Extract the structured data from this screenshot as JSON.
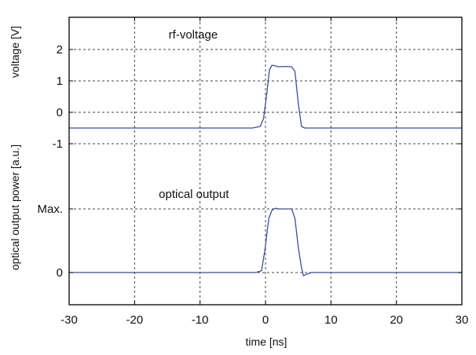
{
  "chart_data": {
    "type": "line",
    "xlabel": "time [ns]",
    "x_ticks": [
      -30,
      -20,
      -10,
      0,
      10,
      20,
      30
    ],
    "xlim": [
      -30,
      30
    ],
    "grid": true,
    "line_color": "#3a4f9c",
    "panels": [
      {
        "ylabel": "voltage [V]",
        "y_ticks": [
          {
            "value": 2,
            "label": "2"
          },
          {
            "value": 1,
            "label": "1"
          },
          {
            "value": 0,
            "label": "0"
          },
          {
            "value": -1,
            "label": "-1"
          }
        ],
        "annotation": {
          "text": "rf-voltage",
          "x": -14.8,
          "y": 2.35
        },
        "series": [
          {
            "x": [
              -30,
              -20,
              -10,
              -2,
              -0.8,
              -0.3,
              0.2,
              0.6,
              1.0,
              2.0,
              3.0,
              4.0,
              4.5,
              5.0,
              5.5,
              6.0,
              10,
              20,
              30
            ],
            "y": [
              -0.5,
              -0.5,
              -0.5,
              -0.5,
              -0.45,
              -0.2,
              0.6,
              1.35,
              1.5,
              1.45,
              1.46,
              1.45,
              1.3,
              0.3,
              -0.45,
              -0.5,
              -0.5,
              -0.5,
              -0.5
            ]
          }
        ]
      },
      {
        "ylabel": "optical output power [a.u.]",
        "y_ticks": [
          {
            "value": 1,
            "label": "Max."
          },
          {
            "value": 0,
            "label": "0"
          }
        ],
        "annotation": {
          "text": "optical output",
          "x": -16.3,
          "y": 1.17
        },
        "series": [
          {
            "x": [
              -30,
              -20,
              -10,
              -1.5,
              -0.6,
              -0.1,
              0.5,
              1.0,
              1.5,
              2.0,
              2.5,
              3.0,
              4.0,
              4.5,
              5.0,
              5.5,
              5.8,
              6.2,
              7.0,
              10,
              20,
              30
            ],
            "y": [
              0,
              0,
              0,
              0,
              0.03,
              0.35,
              0.85,
              0.98,
              1.01,
              1.0,
              1.0,
              1.0,
              1.0,
              0.85,
              0.4,
              0.08,
              -0.05,
              -0.03,
              0,
              0,
              0,
              0
            ]
          }
        ]
      }
    ]
  }
}
